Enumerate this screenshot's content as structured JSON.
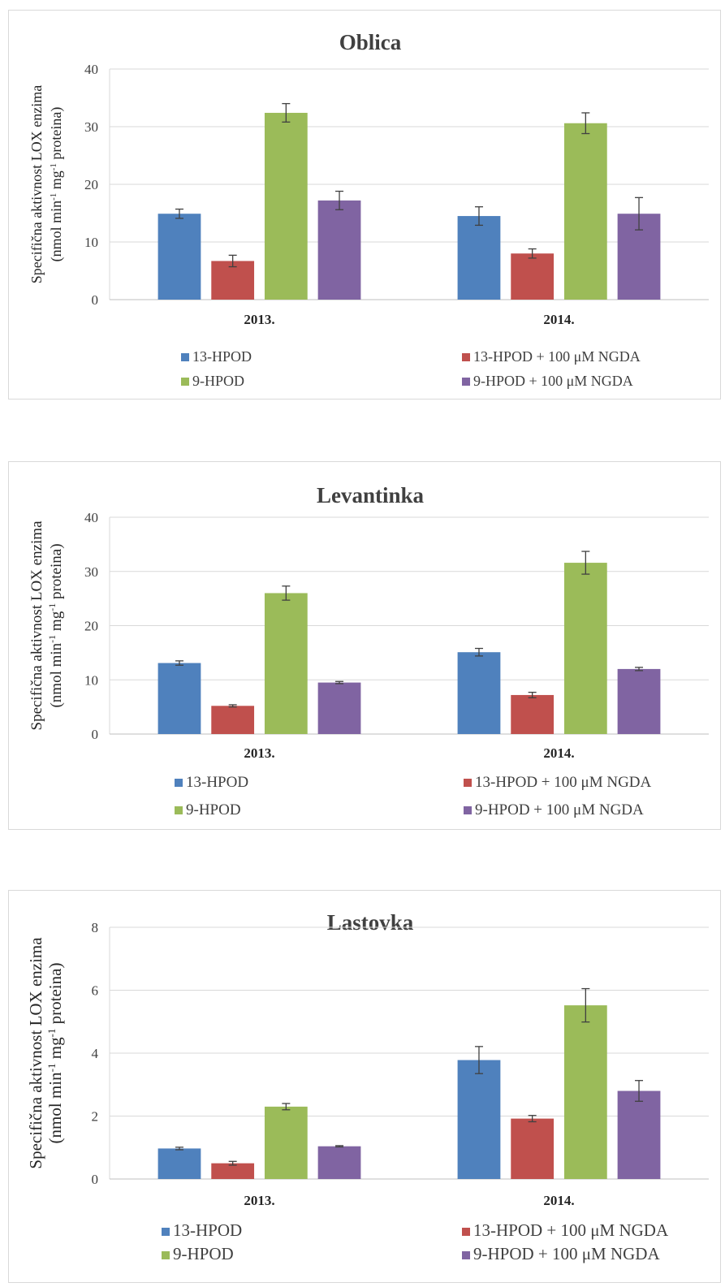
{
  "chart_data": [
    {
      "type": "bar",
      "title": "Oblica",
      "ylabel_line1": "Specifična aktivnost LOX enzima",
      "ylabel_line2": "(nmol min",
      "ylabel_sup1": "-1",
      "ylabel_mid": " mg",
      "ylabel_sup2": "-1",
      "ylabel_end": " proteina)",
      "categories": [
        "2013.",
        "2014."
      ],
      "ylim": [
        0,
        40
      ],
      "yticks": [
        "0",
        "10",
        "20",
        "30",
        "40"
      ],
      "grid": true,
      "legend_position": "bottom",
      "series": [
        {
          "name": "13-HPOD",
          "color": "#4f81bd",
          "values": [
            14.9,
            14.5
          ],
          "errors": [
            0.8,
            1.6
          ]
        },
        {
          "name": "13-HPOD + 100 μM NGDA",
          "color": "#c0504d",
          "values": [
            6.7,
            8.0
          ],
          "errors": [
            1.0,
            0.8
          ]
        },
        {
          "name": "9-HPOD",
          "color": "#9bbb59",
          "values": [
            32.4,
            30.6
          ],
          "errors": [
            1.6,
            1.8
          ]
        },
        {
          "name": "9-HPOD + 100 μM NGDA",
          "color": "#8064a2",
          "values": [
            17.2,
            14.9
          ],
          "errors": [
            1.6,
            2.8
          ]
        }
      ]
    },
    {
      "type": "bar",
      "title": "Levantinka",
      "ylabel_line1": "Specifična aktivnost LOX enzima",
      "ylabel_line2": "(nmol min",
      "ylabel_sup1": "-1",
      "ylabel_mid": " mg",
      "ylabel_sup2": "-1",
      "ylabel_end": " proteina)",
      "categories": [
        "2013.",
        "2014."
      ],
      "ylim": [
        0,
        40
      ],
      "yticks": [
        "0",
        "10",
        "20",
        "30",
        "40"
      ],
      "grid": true,
      "legend_position": "bottom",
      "series": [
        {
          "name": "13-HPOD",
          "color": "#4f81bd",
          "values": [
            13.1,
            15.1
          ],
          "errors": [
            0.4,
            0.7
          ]
        },
        {
          "name": "13-HPOD + 100 μM NGDA",
          "color": "#c0504d",
          "values": [
            5.2,
            7.2
          ],
          "errors": [
            0.2,
            0.5
          ]
        },
        {
          "name": "9-HPOD",
          "color": "#9bbb59",
          "values": [
            26.0,
            31.6
          ],
          "errors": [
            1.3,
            2.1
          ]
        },
        {
          "name": "9-HPOD + 100 μM NGDA",
          "color": "#8064a2",
          "values": [
            9.5,
            12.0
          ],
          "errors": [
            0.2,
            0.3
          ]
        }
      ]
    },
    {
      "type": "bar",
      "title": "Lastovka",
      "ylabel_line1": "Specifična aktivnost LOX enzima",
      "ylabel_line2": "(nmol min",
      "ylabel_sup1": "-1",
      "ylabel_mid": " mg",
      "ylabel_sup2": "-1",
      "ylabel_end": " proteina)",
      "categories": [
        "2013.",
        "2014."
      ],
      "ylim": [
        0,
        8
      ],
      "yticks": [
        "0",
        "2",
        "4",
        "6",
        "8"
      ],
      "grid": true,
      "legend_position": "bottom",
      "series": [
        {
          "name": "13-HPOD",
          "color": "#4f81bd",
          "values": [
            0.97,
            3.78
          ],
          "errors": [
            0.04,
            0.43
          ]
        },
        {
          "name": "13-HPOD + 100 μM NGDA",
          "color": "#c0504d",
          "values": [
            0.5,
            1.92
          ],
          "errors": [
            0.06,
            0.1
          ]
        },
        {
          "name": "9-HPOD",
          "color": "#9bbb59",
          "values": [
            2.3,
            5.52
          ],
          "errors": [
            0.1,
            0.53
          ]
        },
        {
          "name": "9-HPOD + 100 μM NGDA",
          "color": "#8064a2",
          "values": [
            1.04,
            2.8
          ],
          "errors": [
            0.02,
            0.33
          ]
        }
      ]
    }
  ]
}
